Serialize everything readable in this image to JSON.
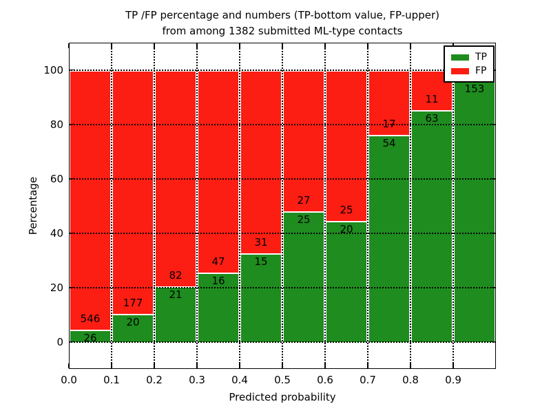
{
  "title": {
    "line1": "TP /FP percentage and numbers (TP-bottom value, FP-upper)",
    "line2": "from among 1382 submitted ML-type contacts"
  },
  "axes": {
    "x_label": "Predicted probability",
    "y_label": "Percentage",
    "x_ticks": [
      "0.0",
      "0.1",
      "0.2",
      "0.3",
      "0.4",
      "0.5",
      "0.6",
      "0.7",
      "0.8",
      "0.9"
    ],
    "y_ticks": [
      "0",
      "20",
      "40",
      "60",
      "80",
      "100"
    ]
  },
  "legend": {
    "items": [
      {
        "label": "TP",
        "color": "#1e8c1e"
      },
      {
        "label": "FP",
        "color": "#fc1d13"
      }
    ]
  },
  "chart_data": {
    "type": "bar",
    "stacked": true,
    "title": "TP /FP percentage and numbers (TP-bottom value, FP-upper) from among 1382 submitted ML-type contacts",
    "xlabel": "Predicted probability",
    "ylabel": "Percentage",
    "xlim": [
      0.0,
      1.0
    ],
    "ylim": [
      -10,
      110
    ],
    "grid": "dotted both axes",
    "legend_position": "upper right",
    "total_contacts": 1382,
    "colors": {
      "tp": "#1e8c1e",
      "fp": "#fc1d13",
      "bar_edge": "#ffffff"
    },
    "bin_width": 0.1,
    "bins": [
      {
        "x_start": 0.0,
        "x_end": 0.1,
        "tp_count": "26",
        "fp_count": "546",
        "tp_pct": 4.5,
        "fp_pct": 95.5
      },
      {
        "x_start": 0.1,
        "x_end": 0.2,
        "tp_count": "20",
        "fp_count": "177",
        "tp_pct": 10.2,
        "fp_pct": 89.8
      },
      {
        "x_start": 0.2,
        "x_end": 0.3,
        "tp_count": "21",
        "fp_count": "82",
        "tp_pct": 20.4,
        "fp_pct": 79.6
      },
      {
        "x_start": 0.3,
        "x_end": 0.4,
        "tp_count": "16",
        "fp_count": "47",
        "tp_pct": 25.4,
        "fp_pct": 74.6
      },
      {
        "x_start": 0.4,
        "x_end": 0.5,
        "tp_count": "15",
        "fp_count": "31",
        "tp_pct": 32.6,
        "fp_pct": 67.4
      },
      {
        "x_start": 0.5,
        "x_end": 0.6,
        "tp_count": "25",
        "fp_count": "27",
        "tp_pct": 48.1,
        "fp_pct": 51.9
      },
      {
        "x_start": 0.6,
        "x_end": 0.7,
        "tp_count": "20",
        "fp_count": "25",
        "tp_pct": 44.4,
        "fp_pct": 55.6
      },
      {
        "x_start": 0.7,
        "x_end": 0.8,
        "tp_count": "54",
        "fp_count": "17",
        "tp_pct": 76.1,
        "fp_pct": 23.9
      },
      {
        "x_start": 0.8,
        "x_end": 0.9,
        "tp_count": "63",
        "fp_count": "11",
        "tp_pct": 85.1,
        "fp_pct": 14.9
      },
      {
        "x_start": 0.9,
        "x_end": 1.0,
        "tp_count": "153",
        "fp_count": "",
        "tp_pct": 96.2,
        "fp_pct": 3.8
      }
    ],
    "note": "FP count label of the last bin is hidden behind the legend box"
  }
}
